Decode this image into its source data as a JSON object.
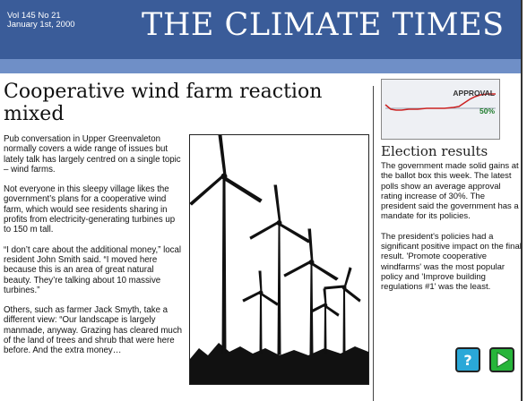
{
  "masthead": {
    "volume": "Vol 145  No 21",
    "date": "January 1st, 2000",
    "title": "THE CLIMATE TIMES"
  },
  "main": {
    "headline": "Cooperative wind farm reaction mixed",
    "paragraphs": [
      "Pub conversation in Upper Greenvaleton normally covers a wide range of issues but lately talk has largely centred on a single topic – wind farms.",
      "Not everyone in this sleepy village likes the government’s plans for a cooperative wind farm, which would see residents sharing in profits from electricity-generating turbines up to 150 m tall.",
      "“I don’t care about the additional money,” local resident John Smith said. “I moved here because this is an area of great natural beauty. They’re talking about 10 massive turbines.”",
      "Others, such as farmer Jack Smyth, take a different view: “Our landscape is largely manmade, anyway. Grazing has cleared much of the land of trees and shrub that were here before. And the extra money…"
    ],
    "photo_icon": "wind-turbines-silhouette"
  },
  "sidebar": {
    "chart_title": "APPROVAL",
    "chart_value": "50%",
    "title": "Election results",
    "paragraphs": [
      "The government made solid gains at the ballot box this week. The latest polls show an average approval rating increase of 30%. The president said the government has a mandate for its policies.",
      "The president's policies had a significant positive impact on the final result. 'Promote cooperative windfarms' was the most popular policy and 'Improve building regulations #1' was the least."
    ]
  },
  "buttons": {
    "help_label": "?",
    "next_icon": "play-arrow-icon"
  },
  "colors": {
    "masthead": "#3a5c99",
    "strip": "#6f8fc7",
    "approval_line": "#cc2222",
    "help_button": "#2aa8d8",
    "next_button": "#27b53a"
  }
}
